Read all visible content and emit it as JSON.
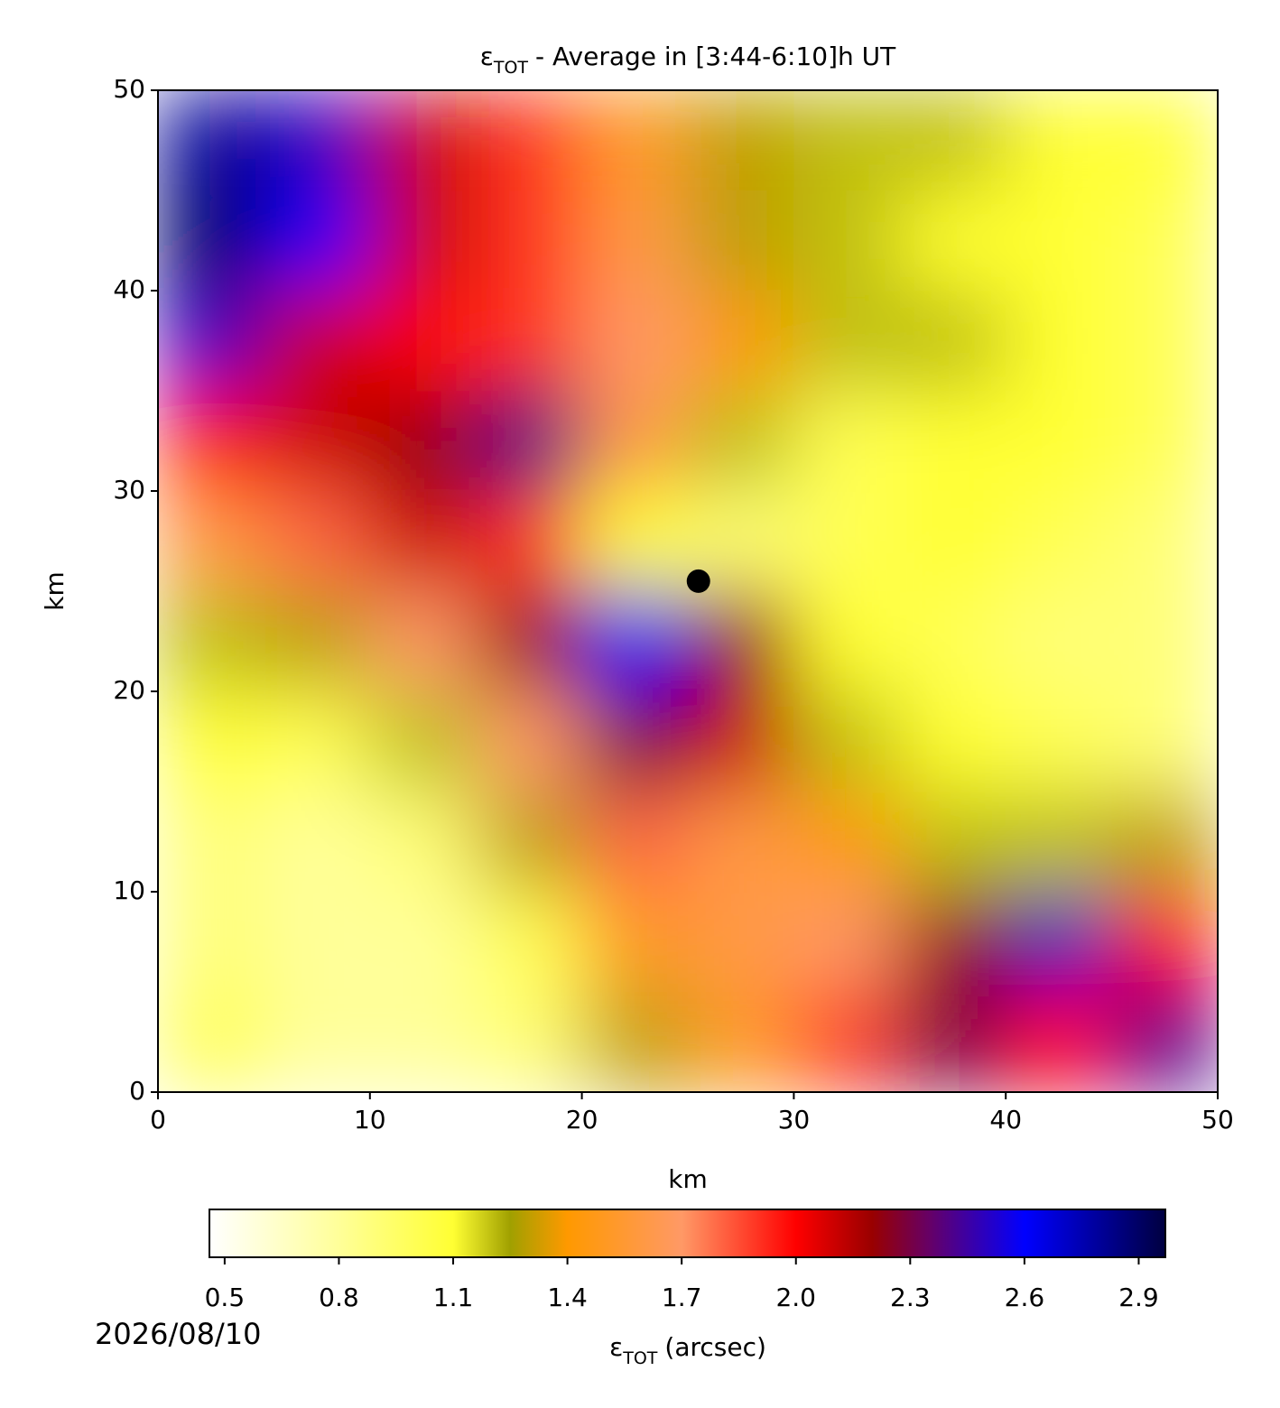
{
  "chart_data": {
    "type": "heatmap",
    "title": [
      "ε",
      "TOT",
      "- Average in [3:44-6:10]h UT"
    ],
    "xlabel": "km",
    "ylabel": "km",
    "xlim": [
      0,
      50
    ],
    "ylim": [
      0,
      50
    ],
    "xticks": [
      0,
      10,
      20,
      30,
      40,
      50
    ],
    "yticks": [
      0,
      10,
      20,
      30,
      40,
      50
    ],
    "z": [
      [
        2.8,
        2.5,
        2.1,
        1.9,
        1.5,
        1.3,
        1.2,
        1.2,
        1.1,
        1.1
      ],
      [
        2.9,
        2.6,
        2.1,
        1.9,
        1.6,
        1.3,
        1.2,
        1.1,
        1.1,
        1.0
      ],
      [
        2.5,
        2.1,
        2.0,
        1.9,
        1.7,
        1.4,
        1.2,
        1.2,
        1.1,
        1.0
      ],
      [
        2.0,
        2.1,
        2.2,
        2.4,
        1.6,
        1.2,
        1.0,
        1.1,
        1.1,
        1.0
      ],
      [
        1.6,
        1.8,
        2.1,
        1.9,
        1.1,
        0.9,
        1.0,
        1.1,
        1.0,
        0.9
      ],
      [
        1.2,
        1.3,
        1.7,
        2.2,
        2.6,
        2.2,
        1.1,
        1.0,
        0.9,
        0.9
      ],
      [
        1.1,
        1.0,
        1.2,
        1.7,
        2.3,
        2.1,
        1.2,
        1.1,
        1.0,
        0.9
      ],
      [
        0.9,
        0.8,
        0.9,
        1.3,
        1.8,
        1.6,
        1.4,
        1.2,
        1.2,
        1.3
      ],
      [
        0.9,
        0.8,
        0.8,
        1.0,
        1.5,
        1.6,
        1.7,
        2.2,
        2.5,
        2.0
      ],
      [
        1.0,
        0.8,
        0.8,
        0.9,
        1.3,
        1.5,
        1.9,
        2.3,
        2.0,
        2.4
      ]
    ],
    "marker": {
      "x": 25.5,
      "y": 25.5,
      "color": "#000000"
    },
    "colormap": [
      {
        "value": 0.46,
        "color": "#ffffff"
      },
      {
        "value": 0.8,
        "color": "#ffff99"
      },
      {
        "value": 1.1,
        "color": "#ffff33"
      },
      {
        "value": 1.25,
        "color": "#a0a000"
      },
      {
        "value": 1.4,
        "color": "#ff9900"
      },
      {
        "value": 1.7,
        "color": "#ff9966"
      },
      {
        "value": 2.0,
        "color": "#ff0000"
      },
      {
        "value": 2.2,
        "color": "#990000"
      },
      {
        "value": 2.35,
        "color": "#660066"
      },
      {
        "value": 2.6,
        "color": "#0000ff"
      },
      {
        "value": 2.97,
        "color": "#000040"
      }
    ],
    "clim": [
      0.46,
      2.97
    ],
    "cticks": [
      0.5,
      0.8,
      1.1,
      1.4,
      1.7,
      {
        "value": 2,
        "label": "2.0"
      },
      2.3,
      2.6,
      2.9
    ],
    "clabel": [
      "ε",
      "TOT",
      "(arcsec)"
    ],
    "date": "2026/08/10"
  }
}
